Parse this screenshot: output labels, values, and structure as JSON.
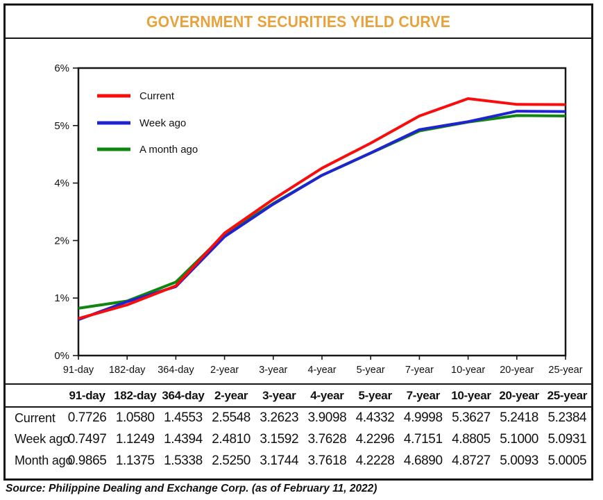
{
  "title": "GOVERNMENT SECURITIES YIELD CURVE",
  "source": "Source: Philippine Dealing and Exchange Corp. (as of February 11, 2022)",
  "colors": {
    "title": "#E8A23B",
    "current": "#F80D0D",
    "week_ago": "#2024D0",
    "month_ago": "#0F860F",
    "frame": "#161616"
  },
  "chart_data": {
    "type": "line",
    "title": "GOVERNMENT SECURITIES YIELD CURVE",
    "categories": [
      "91-day",
      "182-day",
      "364-day",
      "2-year",
      "3-year",
      "4-year",
      "5-year",
      "7-year",
      "10-year",
      "20-year",
      "25-year"
    ],
    "series": [
      {
        "name": "Current",
        "color": "#F80D0D",
        "values": [
          0.7726,
          1.058,
          1.4553,
          2.5548,
          3.2623,
          3.9098,
          4.4332,
          4.9998,
          5.3627,
          5.2418,
          5.2384
        ]
      },
      {
        "name": "Week ago",
        "color": "#2024D0",
        "values": [
          0.7497,
          1.1249,
          1.4394,
          2.481,
          3.1592,
          3.7628,
          4.2296,
          4.7151,
          4.8805,
          5.1,
          5.0931
        ]
      },
      {
        "name": "A month ago",
        "color": "#0F860F",
        "values": [
          0.9865,
          1.1375,
          1.5338,
          2.525,
          3.1744,
          3.7618,
          4.2228,
          4.689,
          4.8727,
          5.0093,
          5.0005
        ]
      }
    ],
    "ylim": [
      0,
      6
    ],
    "y_tick_labels_top_to_bottom": [
      "6%",
      "5%",
      "4%",
      "2%",
      "1%",
      "0%"
    ],
    "grid": false,
    "legend_position": "top-left",
    "legend_labels": [
      "Current",
      "Week ago",
      "A month ago"
    ]
  },
  "table": {
    "headers": [
      "",
      "91-day",
      "182-day",
      "364-day",
      "2-year",
      "3-year",
      "4-year",
      "5-year",
      "7-year",
      "10-year",
      "20-year",
      "25-year"
    ],
    "rows": [
      {
        "label": "Current",
        "values": [
          "0.7726",
          "1.0580",
          "1.4553",
          "2.5548",
          "3.2623",
          "3.9098",
          "4.4332",
          "4.9998",
          "5.3627",
          "5.2418",
          "5.2384"
        ]
      },
      {
        "label": "Week ago",
        "values": [
          "0.7497",
          "1.1249",
          "1.4394",
          "2.4810",
          "3.1592",
          "3.7628",
          "4.2296",
          "4.7151",
          "4.8805",
          "5.1000",
          "5.0931"
        ]
      },
      {
        "label": "Month ago",
        "values": [
          "0.9865",
          "1.1375",
          "1.5338",
          "2.5250",
          "3.1744",
          "3.7618",
          "4.2228",
          "4.6890",
          "4.8727",
          "5.0093",
          "5.0005"
        ]
      }
    ]
  }
}
